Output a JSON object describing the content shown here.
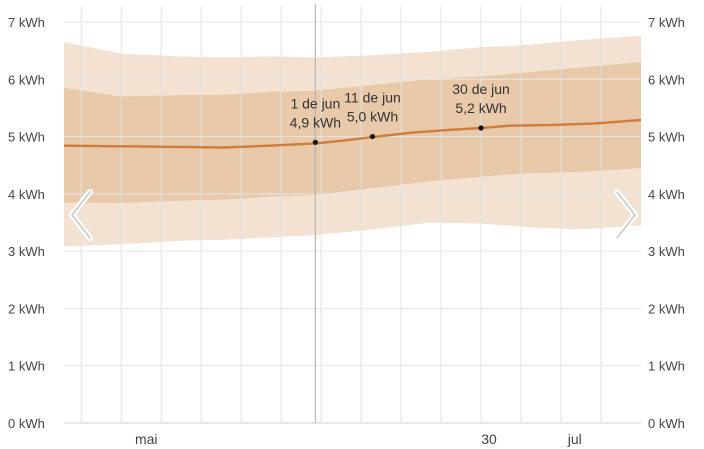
{
  "chart_data": {
    "type": "area",
    "y_unit": "kWh",
    "ylim": [
      0,
      7
    ],
    "y_ticks": [
      "0 kWh",
      "1 kWh",
      "2 kWh",
      "3 kWh",
      "4 kWh",
      "5 kWh",
      "6 kWh",
      "7 kWh"
    ],
    "x_range": [
      "2024-04-18",
      "2024-07-28"
    ],
    "x_ticks": [
      {
        "date": "2024-05-01",
        "label": "mai"
      },
      {
        "date": "2024-06-30",
        "label": "30"
      },
      {
        "date": "2024-07-15",
        "label": "jul"
      }
    ],
    "grid": true,
    "series": [
      {
        "role": "median",
        "color": "#cf7d3a",
        "points": [
          {
            "x": "2024-04-18",
            "y": 4.84
          },
          {
            "x": "2024-04-28",
            "y": 4.83
          },
          {
            "x": "2024-05-08",
            "y": 4.82
          },
          {
            "x": "2024-05-16",
            "y": 4.81
          },
          {
            "x": "2024-05-24",
            "y": 4.84
          },
          {
            "x": "2024-06-01",
            "y": 4.88
          },
          {
            "x": "2024-06-06",
            "y": 4.93
          },
          {
            "x": "2024-06-11",
            "y": 4.99
          },
          {
            "x": "2024-06-18",
            "y": 5.07
          },
          {
            "x": "2024-06-25",
            "y": 5.12
          },
          {
            "x": "2024-06-30",
            "y": 5.15
          },
          {
            "x": "2024-07-05",
            "y": 5.19
          },
          {
            "x": "2024-07-12",
            "y": 5.2
          },
          {
            "x": "2024-07-20",
            "y": 5.23
          },
          {
            "x": "2024-07-28",
            "y": 5.29
          }
        ]
      },
      {
        "role": "inner-band",
        "color": "#e8c9a9",
        "points": [
          {
            "x": "2024-04-18",
            "lo": 3.85,
            "hi": 5.85
          },
          {
            "x": "2024-04-28",
            "lo": 3.84,
            "hi": 5.7
          },
          {
            "x": "2024-05-08",
            "lo": 3.88,
            "hi": 5.72
          },
          {
            "x": "2024-05-16",
            "lo": 3.9,
            "hi": 5.73
          },
          {
            "x": "2024-05-24",
            "lo": 3.95,
            "hi": 5.78
          },
          {
            "x": "2024-06-01",
            "lo": 3.98,
            "hi": 5.8
          },
          {
            "x": "2024-06-11",
            "lo": 4.1,
            "hi": 5.9
          },
          {
            "x": "2024-06-21",
            "lo": 4.22,
            "hi": 6.0
          },
          {
            "x": "2024-06-30",
            "lo": 4.3,
            "hi": 6.05
          },
          {
            "x": "2024-07-08",
            "lo": 4.36,
            "hi": 6.12
          },
          {
            "x": "2024-07-17",
            "lo": 4.38,
            "hi": 6.2
          },
          {
            "x": "2024-07-28",
            "lo": 4.45,
            "hi": 6.3
          }
        ]
      },
      {
        "role": "outer-band",
        "color": "#f3e2d1",
        "points": [
          {
            "x": "2024-04-18",
            "lo": 3.08,
            "hi": 6.65
          },
          {
            "x": "2024-04-28",
            "lo": 3.12,
            "hi": 6.45
          },
          {
            "x": "2024-05-08",
            "lo": 3.18,
            "hi": 6.4
          },
          {
            "x": "2024-05-16",
            "lo": 3.2,
            "hi": 6.38
          },
          {
            "x": "2024-05-24",
            "lo": 3.24,
            "hi": 6.4
          },
          {
            "x": "2024-06-01",
            "lo": 3.28,
            "hi": 6.38
          },
          {
            "x": "2024-06-11",
            "lo": 3.38,
            "hi": 6.42
          },
          {
            "x": "2024-06-21",
            "lo": 3.5,
            "hi": 6.48
          },
          {
            "x": "2024-06-30",
            "lo": 3.48,
            "hi": 6.56
          },
          {
            "x": "2024-07-08",
            "lo": 3.42,
            "hi": 6.6
          },
          {
            "x": "2024-07-17",
            "lo": 3.38,
            "hi": 6.68
          },
          {
            "x": "2024-07-28",
            "lo": 3.45,
            "hi": 6.76
          }
        ]
      }
    ],
    "annotations": [
      {
        "x": "2024-06-01",
        "y": 4.9,
        "date_label": "1 de jun",
        "value_label": "4,9 kWh"
      },
      {
        "x": "2024-06-11",
        "y": 5.0,
        "date_label": "11 de jun",
        "value_label": "5,0 kWh"
      },
      {
        "x": "2024-06-30",
        "y": 5.15,
        "date_label": "30 de jun",
        "value_label": "5,2 kWh"
      }
    ],
    "cursor_date": "2024-06-01"
  },
  "nav": {
    "prev_icon": "chevron-left-icon",
    "next_icon": "chevron-right-icon"
  }
}
